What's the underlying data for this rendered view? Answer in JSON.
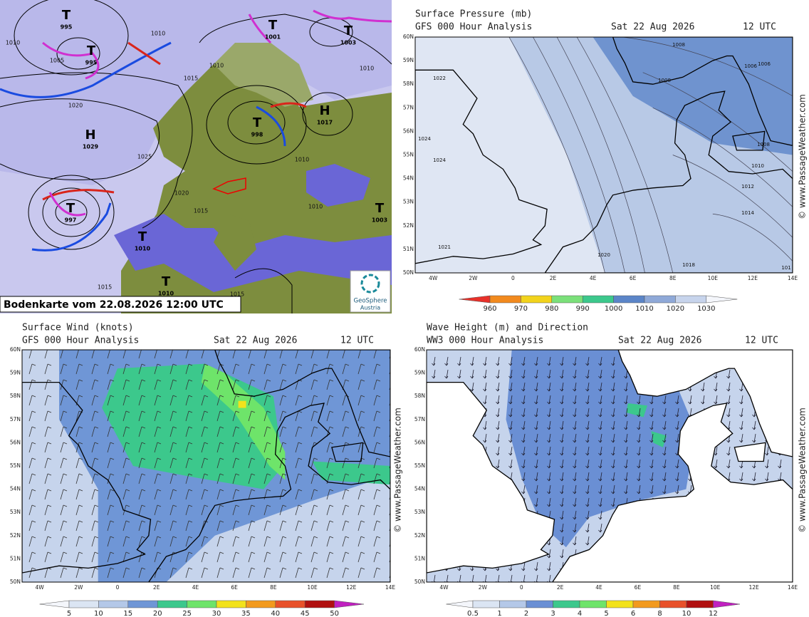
{
  "lat_labels": [
    "60N",
    "59N",
    "58N",
    "57N",
    "56N",
    "55N",
    "54N",
    "53N",
    "52N",
    "51N",
    "50N"
  ],
  "lon_labels": [
    "4W",
    "2W",
    "0",
    "2E",
    "4E",
    "6E",
    "8E",
    "10E",
    "12E",
    "14E"
  ],
  "watermark": "© www.PassageWeather.com",
  "analysis_map": {
    "caption": "Bodenkarte vom 22.08.2026 12:00 UTC",
    "logo": [
      "GeoSphere",
      "Austria"
    ],
    "centers": [
      {
        "symbol": "T",
        "pressure": 995
      },
      {
        "symbol": "T",
        "pressure": 995
      },
      {
        "symbol": "T",
        "pressure": 1001
      },
      {
        "symbol": "T",
        "pressure": 1003
      },
      {
        "symbol": "H",
        "pressure": 1029
      },
      {
        "symbol": "T",
        "pressure": 998
      },
      {
        "symbol": "H",
        "pressure": 1017
      },
      {
        "symbol": "T",
        "pressure": 997
      },
      {
        "symbol": "T",
        "pressure": 1010
      },
      {
        "symbol": "T",
        "pressure": 1010
      },
      {
        "symbol": "T",
        "pressure": 1003
      }
    ],
    "isobar_labels": [
      1010,
      1010,
      1005,
      1020,
      1015,
      1010,
      1010,
      1025,
      1020,
      1015,
      1010,
      1010,
      1015,
      1015
    ]
  },
  "panels": [
    {
      "title": "Surface Pressure (mb)",
      "model": "GFS 000 Hour Analysis",
      "date": "Sat 22 Aug 2026",
      "time": "12 UTC",
      "colorbar": [
        960,
        970,
        980,
        990,
        1000,
        1010,
        1020,
        1030
      ],
      "contour_labels": [
        1022,
        1024,
        1024,
        1021,
        1020,
        1018,
        1008,
        1008,
        1006,
        1006,
        1008,
        1010,
        1012,
        1014,
        101
      ]
    },
    {
      "title": "Surface Wind (knots)",
      "model": "GFS 000 Hour Analysis",
      "date": "Sat 22 Aug 2026",
      "time": "12 UTC",
      "colorbar": [
        5,
        10,
        15,
        20,
        25,
        30,
        35,
        40,
        45,
        50
      ]
    },
    {
      "title": "Wave Height (m) and Direction",
      "model": "WW3 000 Hour Analysis",
      "date": "Sat 22 Aug 2026",
      "time": "12 UTC",
      "colorbar": [
        0.5,
        1,
        2,
        3,
        4,
        5,
        6,
        8,
        10,
        12
      ]
    }
  ]
}
